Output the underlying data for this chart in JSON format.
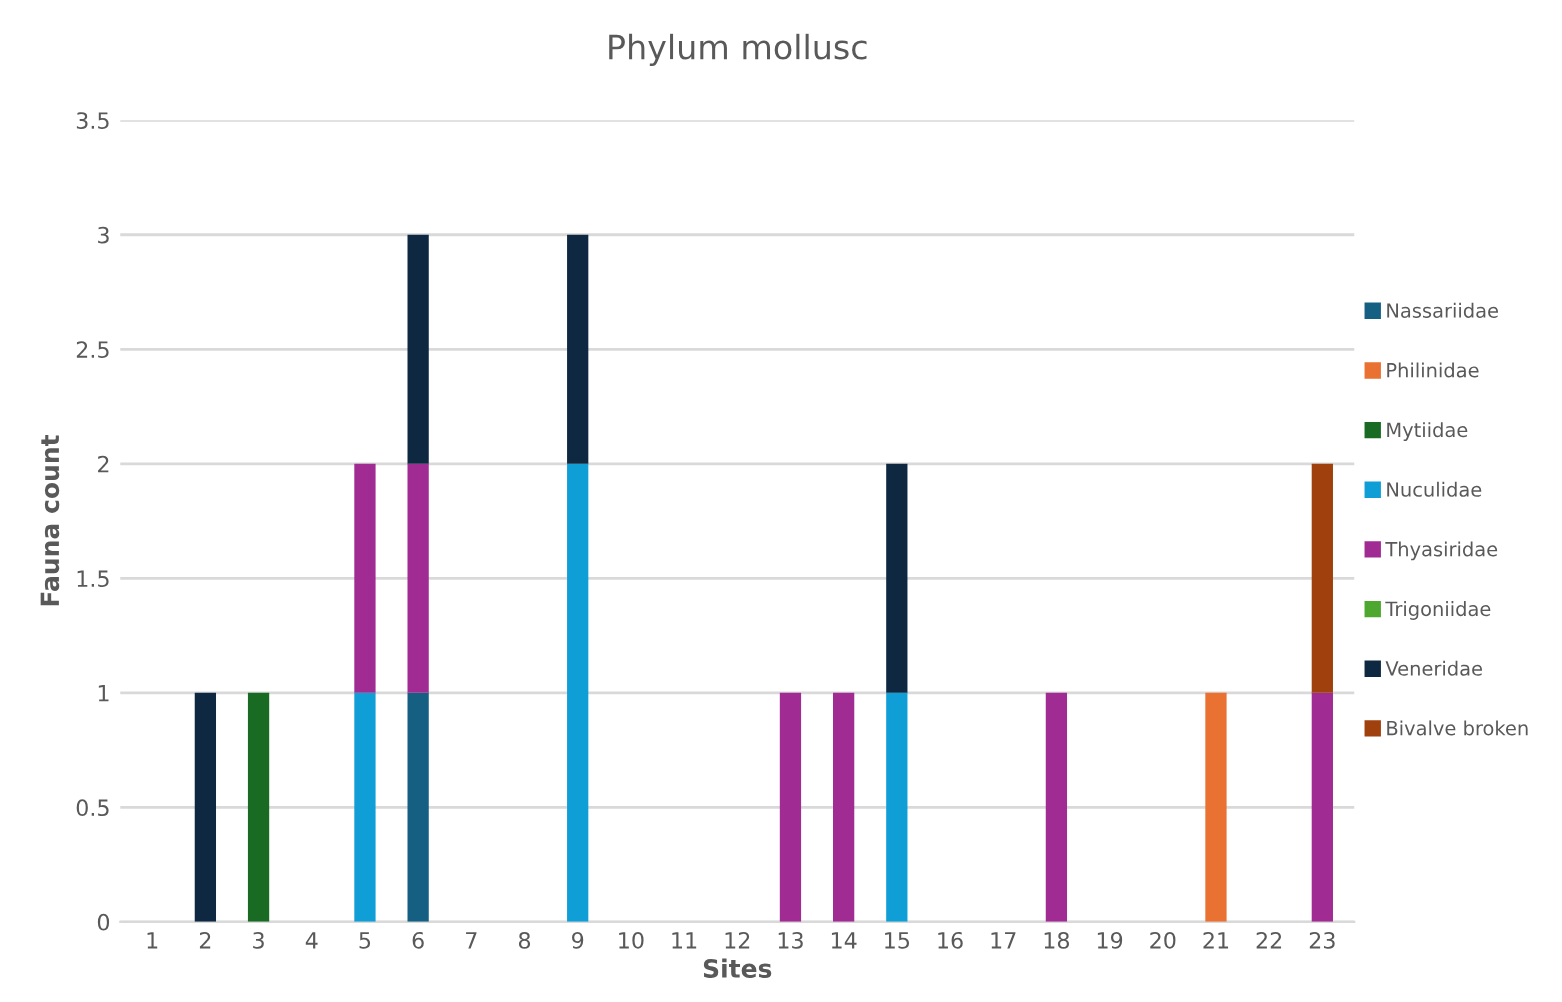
{
  "chart_data": {
    "type": "bar",
    "title": "Phylum mollusc",
    "xlabel": "Sites",
    "ylabel": "Fauna count",
    "categories": [
      "1",
      "2",
      "3",
      "4",
      "5",
      "6",
      "7",
      "8",
      "9",
      "10",
      "11",
      "12",
      "13",
      "14",
      "15",
      "16",
      "17",
      "18",
      "19",
      "20",
      "21",
      "22",
      "23"
    ],
    "stacked": true,
    "ylim": [
      0,
      3.5
    ],
    "yticks": [
      0,
      0.5,
      1,
      1.5,
      2,
      2.5,
      3,
      3.5
    ],
    "grid": "y",
    "legend": "right",
    "series": [
      {
        "name": "Nassariidae",
        "color": "#156082",
        "values": [
          0,
          0,
          0,
          0,
          0,
          1,
          0,
          0,
          0,
          0,
          0,
          0,
          0,
          0,
          0,
          0,
          0,
          0,
          0,
          0,
          0,
          0,
          0
        ]
      },
      {
        "name": "Philinidae",
        "color": "#e97132",
        "values": [
          0,
          0,
          0,
          0,
          0,
          0,
          0,
          0,
          0,
          0,
          0,
          0,
          0,
          0,
          0,
          0,
          0,
          0,
          0,
          0,
          1,
          0,
          0
        ]
      },
      {
        "name": "Mytiidae",
        "color": "#196b24",
        "values": [
          0,
          0,
          1,
          0,
          0,
          0,
          0,
          0,
          0,
          0,
          0,
          0,
          0,
          0,
          0,
          0,
          0,
          0,
          0,
          0,
          0,
          0,
          0
        ]
      },
      {
        "name": "Nuculidae",
        "color": "#0f9ed5",
        "values": [
          0,
          0,
          0,
          0,
          1,
          0,
          0,
          0,
          2,
          0,
          0,
          0,
          0,
          0,
          1,
          0,
          0,
          0,
          0,
          0,
          0,
          0,
          0
        ]
      },
      {
        "name": "Thyasiridae",
        "color": "#a02b93",
        "values": [
          0,
          0,
          0,
          0,
          1,
          1,
          0,
          0,
          0,
          0,
          0,
          0,
          1,
          1,
          0,
          0,
          0,
          1,
          0,
          0,
          0,
          0,
          1
        ]
      },
      {
        "name": "Trigoniidae",
        "color": "#4ea72e",
        "values": [
          0,
          0,
          0,
          0,
          0,
          0,
          0,
          0,
          0,
          0,
          0,
          0,
          0,
          0,
          0,
          0,
          0,
          0,
          0,
          0,
          0,
          0,
          0
        ]
      },
      {
        "name": "Veneridae",
        "color": "#0e2841",
        "values": [
          0,
          1,
          0,
          0,
          0,
          1,
          0,
          0,
          1,
          0,
          0,
          0,
          0,
          0,
          1,
          0,
          0,
          0,
          0,
          0,
          0,
          0,
          0
        ]
      },
      {
        "name": "Bivalve broken",
        "color": "#a0410d",
        "values": [
          0,
          0,
          0,
          0,
          0,
          0,
          0,
          0,
          0,
          0,
          0,
          0,
          0,
          0,
          0,
          0,
          0,
          0,
          0,
          0,
          0,
          0,
          1
        ]
      }
    ]
  }
}
